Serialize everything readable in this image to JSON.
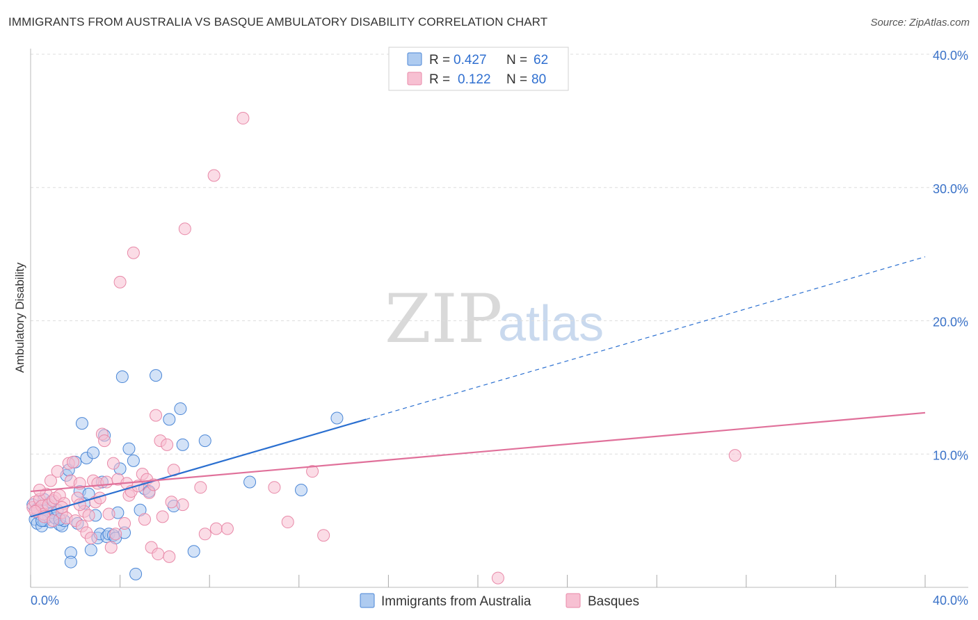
{
  "title": "IMMIGRANTS FROM AUSTRALIA VS BASQUE AMBULATORY DISABILITY CORRELATION CHART",
  "source": "Source: ZipAtlas.com",
  "watermark": {
    "zip": "ZIP",
    "atlas": "atlas"
  },
  "colors": {
    "blue_fill": "#aecbf0",
    "blue_stroke": "#4a86d6",
    "blue_line": "#2a6fd0",
    "pink_fill": "#f7c0d2",
    "pink_stroke": "#e889a8",
    "pink_line": "#e0709a",
    "grid": "#dddddd",
    "axis_text": "#3a72c8"
  },
  "legend": {
    "rows": [
      {
        "r_label": "R =",
        "r_value": "0.427",
        "n_label": "N =",
        "n_value": "62"
      },
      {
        "r_label": "R =",
        "r_value": "0.122",
        "n_label": "N =",
        "n_value": "80"
      }
    ]
  },
  "chart_data": {
    "type": "scatter",
    "title": "IMMIGRANTS FROM AUSTRALIA VS BASQUE AMBULATORY DISABILITY CORRELATION CHART",
    "xlabel": "",
    "ylabel": "Ambulatory Disability",
    "xlim": [
      0,
      40
    ],
    "ylim": [
      0,
      40
    ],
    "x_tick_labels": [
      "0.0%",
      "40.0%"
    ],
    "y_ticks": [
      10,
      20,
      30,
      40
    ],
    "y_tick_labels": [
      "10.0%",
      "20.0%",
      "30.0%",
      "40.0%"
    ],
    "grid": true,
    "legend_position": "top-center",
    "series": [
      {
        "name": "Immigrants from Australia",
        "color": "blue",
        "r": 0.427,
        "n": 62,
        "trend": {
          "x0": 0,
          "y0": 5.3,
          "x1": 15,
          "y1": 12.6,
          "dash_x1": 40,
          "dash_y1": 24.8
        },
        "points": [
          [
            0.2,
            5.1
          ],
          [
            0.3,
            4.8
          ],
          [
            0.4,
            5.5
          ],
          [
            0.5,
            4.6
          ],
          [
            0.6,
            5.0
          ],
          [
            0.7,
            5.9
          ],
          [
            0.8,
            5.3
          ],
          [
            0.9,
            4.9
          ],
          [
            1.0,
            5.6
          ],
          [
            1.1,
            5.2
          ],
          [
            1.2,
            5.8
          ],
          [
            1.3,
            4.7
          ],
          [
            1.4,
            4.6
          ],
          [
            1.5,
            5.0
          ],
          [
            1.6,
            8.4
          ],
          [
            1.7,
            8.8
          ],
          [
            1.8,
            2.6
          ],
          [
            1.8,
            1.9
          ],
          [
            2.0,
            9.4
          ],
          [
            2.1,
            4.8
          ],
          [
            2.2,
            7.2
          ],
          [
            2.3,
            12.3
          ],
          [
            2.4,
            6.3
          ],
          [
            2.5,
            9.7
          ],
          [
            2.6,
            7.0
          ],
          [
            2.7,
            2.8
          ],
          [
            2.8,
            10.1
          ],
          [
            2.9,
            5.4
          ],
          [
            3.0,
            3.7
          ],
          [
            3.1,
            4.0
          ],
          [
            3.2,
            7.9
          ],
          [
            3.3,
            11.4
          ],
          [
            3.4,
            3.8
          ],
          [
            3.5,
            4.0
          ],
          [
            3.7,
            3.9
          ],
          [
            3.8,
            3.7
          ],
          [
            3.9,
            5.6
          ],
          [
            4.0,
            8.9
          ],
          [
            4.1,
            15.8
          ],
          [
            4.2,
            4.1
          ],
          [
            4.4,
            10.4
          ],
          [
            4.6,
            9.5
          ],
          [
            4.7,
            1.0
          ],
          [
            4.9,
            5.8
          ],
          [
            5.1,
            7.4
          ],
          [
            5.3,
            7.2
          ],
          [
            5.6,
            15.9
          ],
          [
            6.2,
            12.6
          ],
          [
            6.4,
            6.1
          ],
          [
            6.7,
            13.4
          ],
          [
            6.8,
            10.7
          ],
          [
            7.3,
            2.7
          ],
          [
            7.8,
            11.0
          ],
          [
            9.8,
            7.9
          ],
          [
            12.1,
            7.3
          ],
          [
            13.7,
            12.7
          ],
          [
            0.1,
            6.2
          ],
          [
            0.3,
            5.9
          ],
          [
            0.5,
            5.0
          ],
          [
            0.9,
            6.4
          ],
          [
            1.3,
            5.1
          ],
          [
            0.6,
            6.6
          ]
        ]
      },
      {
        "name": "Basques",
        "color": "pink",
        "r": 0.122,
        "n": 80,
        "trend": {
          "x0": 0,
          "y0": 7.2,
          "x1": 40,
          "y1": 13.1
        },
        "points": [
          [
            0.1,
            6.0
          ],
          [
            0.2,
            6.4
          ],
          [
            0.3,
            5.8
          ],
          [
            0.4,
            6.6
          ],
          [
            0.5,
            6.1
          ],
          [
            0.6,
            5.5
          ],
          [
            0.7,
            7.0
          ],
          [
            0.8,
            6.2
          ],
          [
            0.9,
            8.0
          ],
          [
            1.0,
            6.5
          ],
          [
            1.1,
            6.7
          ],
          [
            1.2,
            8.7
          ],
          [
            1.3,
            6.9
          ],
          [
            1.4,
            5.6
          ],
          [
            1.5,
            6.3
          ],
          [
            1.6,
            5.2
          ],
          [
            1.7,
            9.3
          ],
          [
            1.8,
            8.0
          ],
          [
            1.9,
            9.4
          ],
          [
            2.0,
            5.0
          ],
          [
            2.1,
            6.7
          ],
          [
            2.2,
            7.8
          ],
          [
            2.3,
            4.6
          ],
          [
            2.4,
            5.7
          ],
          [
            2.5,
            4.1
          ],
          [
            2.6,
            5.4
          ],
          [
            2.7,
            3.7
          ],
          [
            2.8,
            8.0
          ],
          [
            2.9,
            6.4
          ],
          [
            3.0,
            7.8
          ],
          [
            3.1,
            6.7
          ],
          [
            3.2,
            11.5
          ],
          [
            3.3,
            11.0
          ],
          [
            3.4,
            7.9
          ],
          [
            3.5,
            5.5
          ],
          [
            3.6,
            3.0
          ],
          [
            3.7,
            9.3
          ],
          [
            3.8,
            4.0
          ],
          [
            3.9,
            8.1
          ],
          [
            4.0,
            22.9
          ],
          [
            4.2,
            4.8
          ],
          [
            4.3,
            7.8
          ],
          [
            4.4,
            6.9
          ],
          [
            4.5,
            7.2
          ],
          [
            4.6,
            25.1
          ],
          [
            4.8,
            7.6
          ],
          [
            5.0,
            8.5
          ],
          [
            5.1,
            5.1
          ],
          [
            5.2,
            8.1
          ],
          [
            5.3,
            7.1
          ],
          [
            5.4,
            3.0
          ],
          [
            5.5,
            7.7
          ],
          [
            5.6,
            12.9
          ],
          [
            5.7,
            2.5
          ],
          [
            5.8,
            11.0
          ],
          [
            5.9,
            5.3
          ],
          [
            6.1,
            10.7
          ],
          [
            6.2,
            2.3
          ],
          [
            6.3,
            6.4
          ],
          [
            6.4,
            8.8
          ],
          [
            6.8,
            6.2
          ],
          [
            6.9,
            26.9
          ],
          [
            7.6,
            7.5
          ],
          [
            7.8,
            4.0
          ],
          [
            8.2,
            30.9
          ],
          [
            8.3,
            4.4
          ],
          [
            8.8,
            4.4
          ],
          [
            9.5,
            35.2
          ],
          [
            10.9,
            7.5
          ],
          [
            11.5,
            4.9
          ],
          [
            12.6,
            8.7
          ],
          [
            13.1,
            3.9
          ],
          [
            20.9,
            0.7
          ],
          [
            31.5,
            9.9
          ],
          [
            0.2,
            5.7
          ],
          [
            0.6,
            5.3
          ],
          [
            1.0,
            5.0
          ],
          [
            1.4,
            6.0
          ],
          [
            0.4,
            7.3
          ],
          [
            2.2,
            6.2
          ]
        ]
      }
    ]
  }
}
